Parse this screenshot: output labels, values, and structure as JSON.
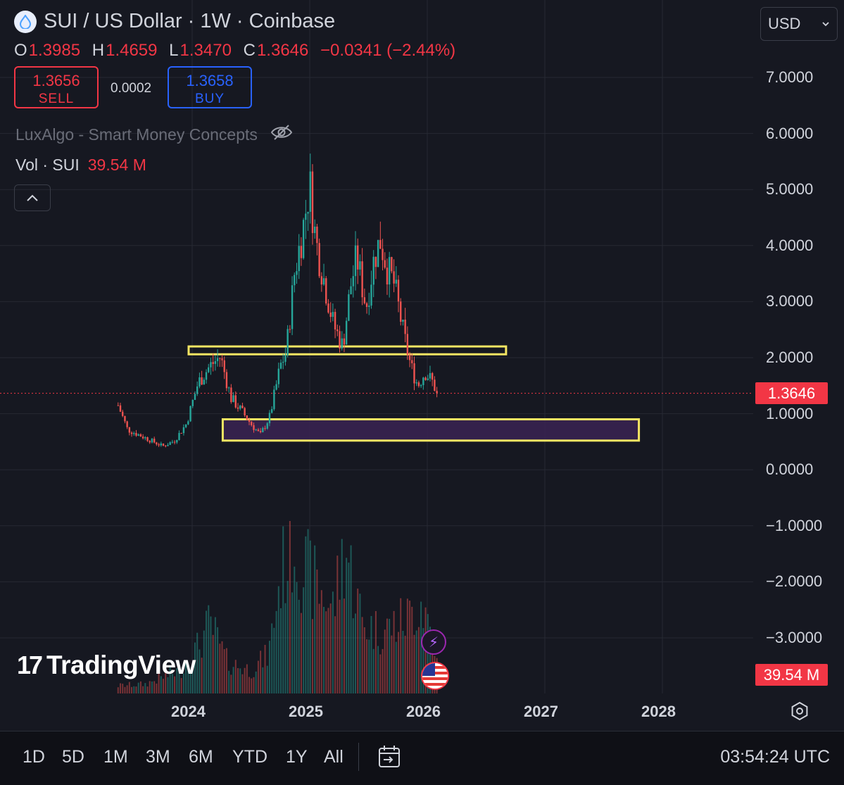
{
  "header": {
    "title": "SUI / US Dollar · 1W · Coinbase",
    "ohlc": [
      {
        "key": "O",
        "value": "1.3985"
      },
      {
        "key": "H",
        "value": "1.4659"
      },
      {
        "key": "L",
        "value": "1.3470"
      },
      {
        "key": "C",
        "value": "1.3646"
      }
    ],
    "change": "−0.0341 (−2.44%)",
    "icon": "sui-drop-icon"
  },
  "trade": {
    "sell_price": "1.3656",
    "sell_label": "SELL",
    "spread": "0.0002",
    "buy_price": "1.3658",
    "buy_label": "BUY"
  },
  "indicator": {
    "name": "LuxAlgo - Smart Money Concepts",
    "visibility_icon": "eye-off-icon"
  },
  "volume": {
    "name": "Vol · SUI",
    "value": "39.54 M"
  },
  "currency": {
    "selected": "USD"
  },
  "brand": {
    "name": "TradingView",
    "mark": "17"
  },
  "colors": {
    "up": "#26a69a",
    "down": "#ef5350",
    "zone_outline": "#f5e663",
    "zone_fill": "#3a2352",
    "price_badge": "#f23645"
  },
  "chart_data": {
    "type": "candlestick",
    "interval": "1W",
    "y_axis": {
      "ylim": [
        -3.5,
        7.5
      ],
      "ticks": [
        "7.0000",
        "6.0000",
        "5.0000",
        "4.0000",
        "3.0000",
        "2.0000",
        "1.0000",
        "0.0000",
        "−1.0000",
        "−2.0000",
        "−3.0000"
      ],
      "tick_values": [
        7,
        6,
        5,
        4,
        3,
        2,
        1,
        0,
        -1,
        -2,
        -3
      ]
    },
    "x_axis": {
      "ticks": [
        "2024",
        "2025",
        "2026",
        "2027",
        "2028"
      ],
      "tick_values": [
        2024,
        2025,
        2026,
        2027,
        2028
      ],
      "xlim": [
        2022.2,
        2029.2
      ]
    },
    "last_price": {
      "value": 1.3646,
      "label": "1.3646"
    },
    "volume_label": "39.54 M",
    "price_path": [
      [
        2023.37,
        1.15
      ],
      [
        2023.45,
        0.72
      ],
      [
        2023.55,
        0.62
      ],
      [
        2023.65,
        0.52
      ],
      [
        2023.75,
        0.42
      ],
      [
        2023.85,
        0.52
      ],
      [
        2023.95,
        0.82
      ],
      [
        2024.05,
        1.55
      ],
      [
        2024.15,
        1.85
      ],
      [
        2024.24,
        2.02
      ],
      [
        2024.33,
        1.28
      ],
      [
        2024.42,
        1.05
      ],
      [
        2024.5,
        0.82
      ],
      [
        2024.58,
        0.62
      ],
      [
        2024.66,
        0.95
      ],
      [
        2024.75,
        1.85
      ],
      [
        2024.8,
        2.1
      ],
      [
        2024.87,
        3.5
      ],
      [
        2024.95,
        4.4
      ],
      [
        2025.0,
        5.1
      ],
      [
        2025.05,
        4.1
      ],
      [
        2025.12,
        3.4
      ],
      [
        2025.2,
        2.6
      ],
      [
        2025.28,
        2.2
      ],
      [
        2025.35,
        3.3
      ],
      [
        2025.4,
        3.8
      ],
      [
        2025.48,
        2.9
      ],
      [
        2025.55,
        3.8
      ],
      [
        2025.6,
        4.1
      ],
      [
        2025.66,
        3.6
      ],
      [
        2025.72,
        3.3
      ],
      [
        2025.8,
        2.4
      ],
      [
        2025.86,
        1.85
      ],
      [
        2025.92,
        1.5
      ],
      [
        2025.98,
        1.75
      ],
      [
        2026.05,
        1.55
      ],
      [
        2026.08,
        1.3646
      ]
    ],
    "volume_path": [
      [
        2023.37,
        0.05
      ],
      [
        2023.6,
        0.06
      ],
      [
        2023.9,
        0.15
      ],
      [
        2024.05,
        0.3
      ],
      [
        2024.15,
        0.45
      ],
      [
        2024.3,
        0.2
      ],
      [
        2024.5,
        0.15
      ],
      [
        2024.65,
        0.25
      ],
      [
        2024.75,
        0.75
      ],
      [
        2024.85,
        1.0
      ],
      [
        2024.95,
        0.8
      ],
      [
        2025.05,
        0.7
      ],
      [
        2025.2,
        0.55
      ],
      [
        2025.3,
        0.95
      ],
      [
        2025.45,
        0.45
      ],
      [
        2025.6,
        0.4
      ],
      [
        2025.75,
        0.45
      ],
      [
        2025.85,
        0.5
      ],
      [
        2025.95,
        0.6
      ],
      [
        2026.08,
        0.3
      ]
    ],
    "zones": [
      {
        "x": [
          2023.97,
          2026.67
        ],
        "y": [
          2.06,
          2.2
        ],
        "style": "outline"
      },
      {
        "x": [
          2024.26,
          2027.8
        ],
        "y": [
          0.52,
          0.9
        ],
        "style": "filled"
      }
    ]
  },
  "ranges": [
    "1D",
    "5D",
    "1M",
    "3M",
    "6M",
    "YTD",
    "1Y",
    "All"
  ],
  "clock": "03:54:24 UTC"
}
